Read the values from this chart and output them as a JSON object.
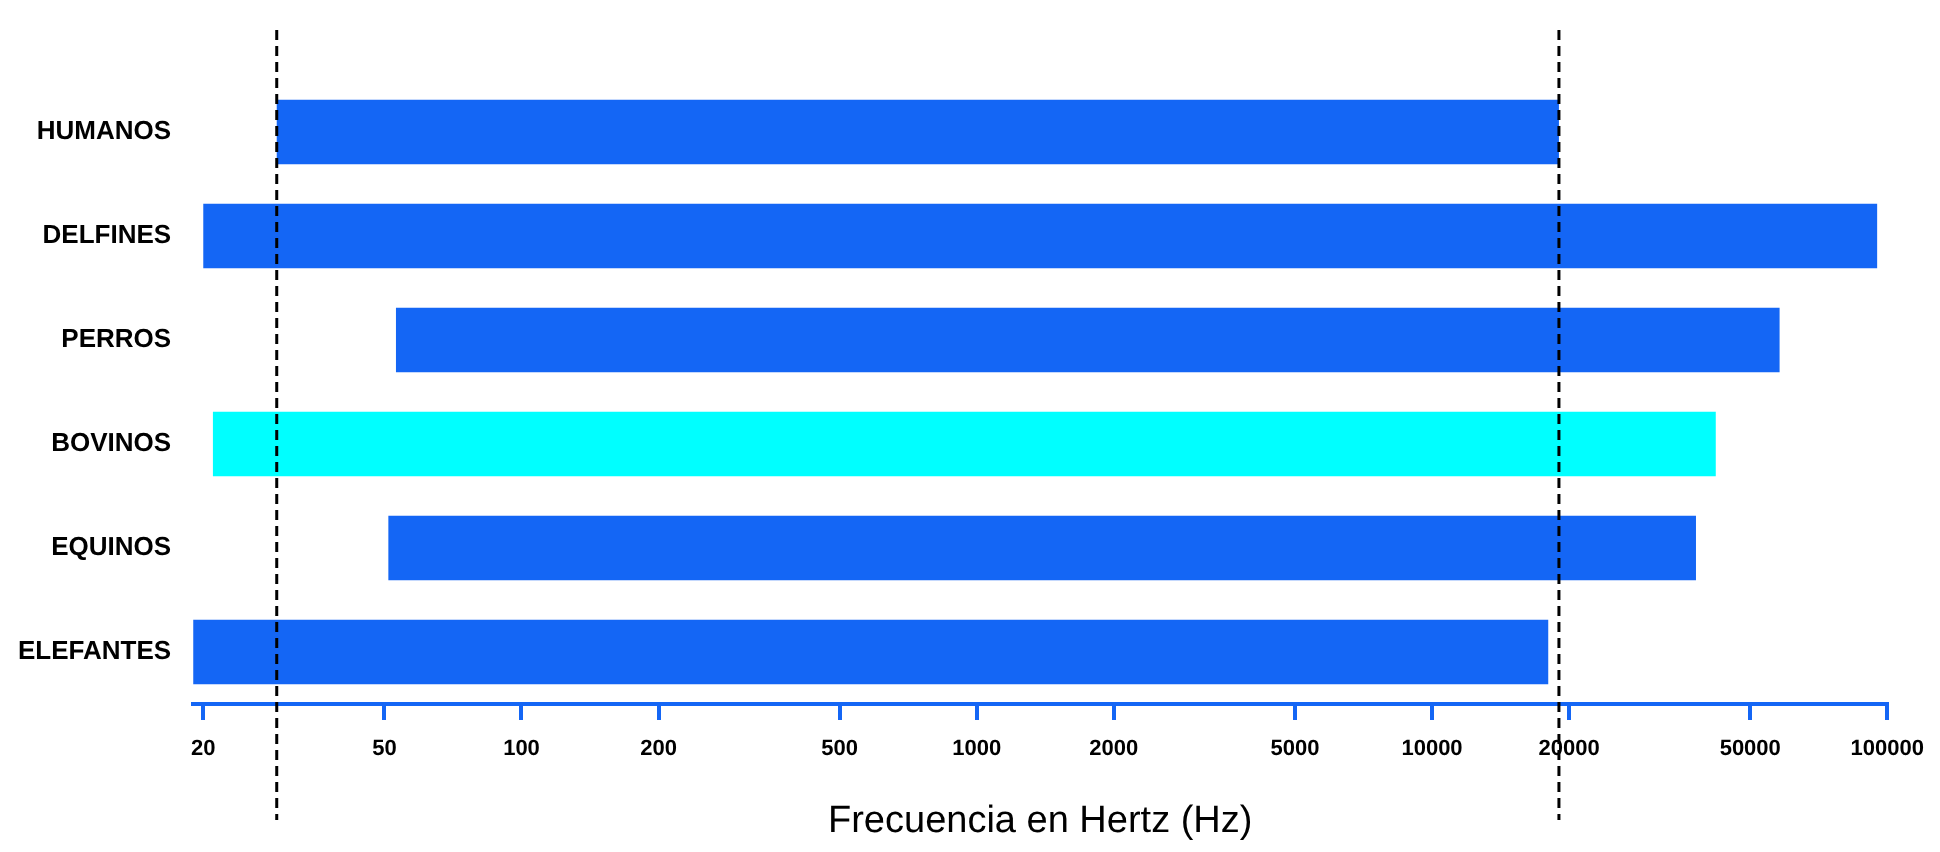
{
  "chart_data": {
    "type": "bar",
    "orientation": "horizontal",
    "xlabel": "Frecuencia en Hertz (Hz)",
    "categories": [
      "HUMANOS",
      "DELFINES",
      "PERROS",
      "BOVINOS",
      "EQUINOS",
      "ELEFANTES"
    ],
    "base": [
      29,
      20,
      53,
      21,
      51,
      19
    ],
    "values": [
      18971,
      94980,
      57947,
      41979,
      37949,
      17981
    ],
    "colors": [
      "#1466f5",
      "#1466f5",
      "#1466f5",
      "#00ffff",
      "#1466f5",
      "#1466f5"
    ],
    "log": "x",
    "xlim": [
      19,
      100000
    ],
    "xticks": [
      20,
      50,
      100,
      200,
      500,
      1000,
      2000,
      5000,
      10000,
      20000,
      50000,
      100000
    ],
    "ref_lines": [
      {
        "axis": "x",
        "value": 29,
        "line_style": "dashed",
        "color": "#000000"
      },
      {
        "axis": "x",
        "value": 19000,
        "line_style": "dashed",
        "color": "#000000"
      }
    ]
  }
}
